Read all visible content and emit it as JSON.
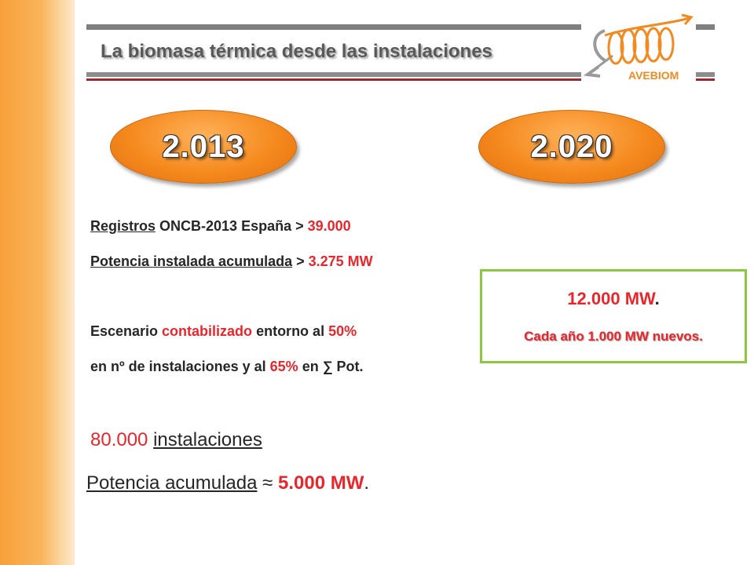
{
  "header": {
    "title": "La biomasa térmica desde las instalaciones",
    "logo_text": "AVEBIOM"
  },
  "years": {
    "left": "2.013",
    "right": "2.020"
  },
  "stats_2013": {
    "line1": {
      "label": "Registros",
      "text": " ONCB-2013 España > ",
      "value": "39.000"
    },
    "line2": {
      "label": "Potencia instalada acumulada",
      "text": " > ",
      "value": "3.275 MW"
    },
    "line3": {
      "text1": "Escenario ",
      "highlight": "contabilizado",
      "text2": " entorno al ",
      "value": "50%"
    },
    "line4": {
      "text1": "en nº de instalaciones  y al ",
      "value": "65%",
      "text2": " en ∑ Pot."
    },
    "line5": {
      "value": "80.000",
      "label": "instalaciones"
    },
    "line6": {
      "label": "Potencia acumulada",
      "symbol": " ≈ ",
      "value": "5.000 MW",
      "end": "."
    }
  },
  "box_2020": {
    "value": "12.000 MW",
    "dot": ".",
    "subtitle": "Cada año 1.000 MW nuevos."
  },
  "colors": {
    "accent_orange": "#f58a1f",
    "red": "#e8262b",
    "green": "#8dc63f",
    "dark_red": "#a0272d"
  }
}
